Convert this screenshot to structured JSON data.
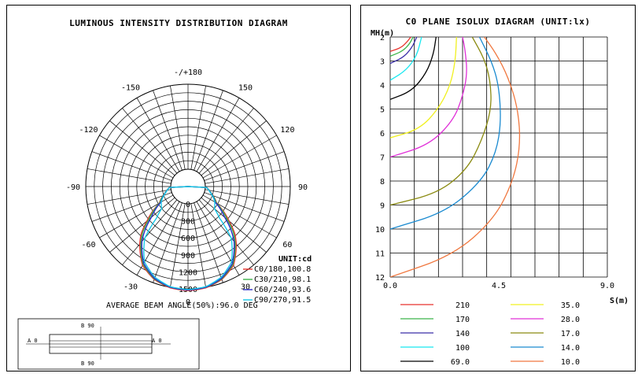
{
  "left_panel": {
    "title": "LUMINOUS INTENSITY DISTRIBUTION DIAGRAM",
    "beam_angle_text": "AVERAGE BEAM ANGLE(50%):96.0 DEG",
    "unit_label": "UNIT:cd",
    "legend": [
      {
        "label": "C0/180,100.8",
        "color": "#e8322c"
      },
      {
        "label": "C30/210,98.1",
        "color": "#3cb44b"
      },
      {
        "label": "C60/240,93.6",
        "color": "#2b2bc8"
      },
      {
        "label": "C90/270,91.5",
        "color": "#18c8e8"
      }
    ],
    "diagram": {
      "label_b90": "B 90",
      "label_a0": "A 0"
    }
  },
  "right_panel": {
    "title": "C0 PLANE ISOLUX DIAGRAM (UNIT:lx)",
    "y_axis_label": "MH(m)",
    "x_axis_label": "S(m)",
    "legend": [
      {
        "label": "210",
        "color": "#e8322c"
      },
      {
        "label": "170",
        "color": "#3cb44b"
      },
      {
        "label": "140",
        "color": "#3a2ea8"
      },
      {
        "label": "100",
        "color": "#18e8f0"
      },
      {
        "label": "69.0",
        "color": "#000000"
      },
      {
        "label": "35.0",
        "color": "#f0f020"
      },
      {
        "label": "28.0",
        "color": "#e030d8"
      },
      {
        "label": "17.0",
        "color": "#8a8a10"
      },
      {
        "label": "14.0",
        "color": "#1a8ad0"
      },
      {
        "label": "10.0",
        "color": "#f07840"
      }
    ]
  },
  "chart_data": [
    {
      "type": "polar",
      "title": "LUMINOUS INTENSITY DISTRIBUTION DIAGRAM",
      "angle_labels": [
        "-/+180",
        "150",
        "120",
        "90",
        "60",
        "30",
        "0",
        "-30",
        "-60",
        "-90",
        "-120",
        "-150"
      ],
      "radial_ticks": [
        "0",
        "300",
        "600",
        "900",
        "1200",
        "1500"
      ],
      "radial_max": 1500,
      "unit": "cd",
      "series": [
        {
          "name": "C0/180,100.8",
          "angles": [
            -90,
            -75,
            -60,
            -50,
            -45,
            -40,
            -30,
            -20,
            -10,
            0,
            10,
            20,
            30,
            40,
            45,
            50,
            60,
            75,
            90
          ],
          "values": [
            0,
            110,
            280,
            640,
            860,
            1020,
            1300,
            1440,
            1510,
            1530,
            1510,
            1440,
            1300,
            1020,
            860,
            640,
            280,
            110,
            0
          ]
        },
        {
          "name": "C30/210,98.1",
          "angles": [
            -90,
            -75,
            -60,
            -50,
            -45,
            -40,
            -30,
            -20,
            -10,
            0,
            10,
            20,
            30,
            40,
            45,
            50,
            60,
            75,
            90
          ],
          "values": [
            0,
            110,
            270,
            600,
            820,
            990,
            1280,
            1430,
            1500,
            1520,
            1500,
            1430,
            1280,
            990,
            820,
            600,
            270,
            110,
            0
          ]
        },
        {
          "name": "C60/240,93.6",
          "angles": [
            -90,
            -75,
            -60,
            -50,
            -45,
            -40,
            -30,
            -20,
            -10,
            0,
            10,
            20,
            30,
            40,
            45,
            50,
            60,
            75,
            90
          ],
          "values": [
            0,
            105,
            250,
            540,
            760,
            960,
            1260,
            1420,
            1500,
            1520,
            1500,
            1420,
            1260,
            960,
            760,
            540,
            250,
            105,
            0
          ]
        },
        {
          "name": "C90/270,91.5",
          "angles": [
            -90,
            -75,
            -60,
            -50,
            -45,
            -40,
            -30,
            -20,
            -10,
            0,
            10,
            20,
            30,
            40,
            45,
            50,
            60,
            75,
            90
          ],
          "values": [
            0,
            100,
            240,
            300,
            480,
            880,
            1230,
            1400,
            1490,
            1510,
            1490,
            1400,
            1230,
            880,
            480,
            300,
            240,
            100,
            0
          ]
        }
      ]
    },
    {
      "type": "line",
      "title": "C0 PLANE ISOLUX DIAGRAM (UNIT:lx)",
      "xlabel": "S(m)",
      "ylabel": "MH(m)",
      "xlim": [
        0,
        9
      ],
      "ylim": [
        2,
        12
      ],
      "y_inverted": true,
      "x_ticks": [
        "0.0",
        "4.5",
        "9.0"
      ],
      "y_ticks": [
        "2",
        "3",
        "4",
        "5",
        "6",
        "7",
        "8",
        "9",
        "10",
        "11",
        "12"
      ],
      "series": [
        {
          "name": "210",
          "x": [
            0,
            0.45,
            0.7,
            0.85
          ],
          "y": [
            2.6,
            2.45,
            2.2,
            2.0
          ]
        },
        {
          "name": "170",
          "x": [
            0,
            0.5,
            0.8,
            0.95
          ],
          "y": [
            2.8,
            2.6,
            2.3,
            2.0
          ]
        },
        {
          "name": "140",
          "x": [
            0,
            0.55,
            0.9,
            1.1
          ],
          "y": [
            3.1,
            2.85,
            2.45,
            2.0
          ]
        },
        {
          "name": "100",
          "x": [
            0,
            0.65,
            1.1,
            1.3
          ],
          "y": [
            3.8,
            3.4,
            2.8,
            2.0
          ]
        },
        {
          "name": "69.0",
          "x": [
            0,
            0.9,
            1.5,
            1.8,
            1.9
          ],
          "y": [
            4.6,
            4.25,
            3.5,
            2.7,
            2.0
          ]
        },
        {
          "name": "35.0",
          "x": [
            0,
            1.2,
            2.0,
            2.5,
            2.7,
            2.75
          ],
          "y": [
            6.2,
            5.85,
            5.0,
            4.0,
            3.0,
            2.0
          ]
        },
        {
          "name": "28.0",
          "x": [
            0,
            1.6,
            2.6,
            3.0,
            3.2,
            3.1,
            3.0
          ],
          "y": [
            7.0,
            6.5,
            5.5,
            4.5,
            3.5,
            2.5,
            2.0
          ]
        },
        {
          "name": "17.0",
          "x": [
            0,
            2.0,
            3.2,
            3.8,
            4.2,
            4.15,
            3.9,
            3.4
          ],
          "y": [
            9.0,
            8.5,
            7.5,
            6.3,
            5.0,
            3.8,
            2.9,
            2.0
          ]
        },
        {
          "name": "14.0",
          "x": [
            0,
            2.3,
            3.8,
            4.4,
            4.6,
            4.5,
            4.2,
            3.7
          ],
          "y": [
            10.0,
            9.3,
            8.0,
            6.8,
            5.5,
            4.0,
            3.0,
            2.0
          ]
        },
        {
          "name": "10.0",
          "x": [
            0,
            2.6,
            4.3,
            5.1,
            5.4,
            5.3,
            4.9,
            4.4,
            3.9
          ],
          "y": [
            12.0,
            11.1,
            9.6,
            8.0,
            6.5,
            5.0,
            3.7,
            2.7,
            2.0
          ]
        }
      ]
    }
  ]
}
